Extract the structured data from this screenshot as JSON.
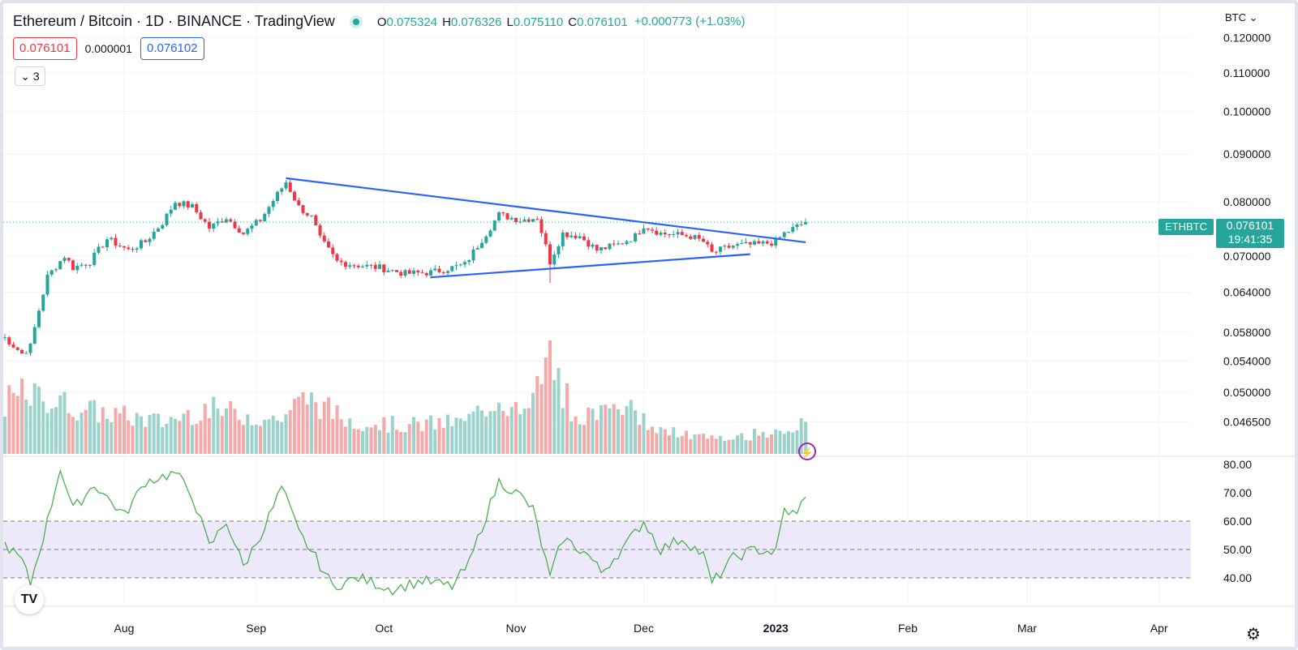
{
  "header": {
    "title": "Ethereum / Bitcoin · 1D · BINANCE · TradingView",
    "ohlc": [
      {
        "k": "O",
        "v": "0.075324"
      },
      {
        "k": "H",
        "v": "0.076326"
      },
      {
        "k": "L",
        "v": "0.075110"
      },
      {
        "k": "C",
        "v": "0.076101"
      }
    ],
    "change": "+0.000773 (+1.03%)",
    "sell_price": "0.076101",
    "spread": "0.000001",
    "buy_price": "0.076102",
    "indicators_toggle": "3",
    "currency": "BTC"
  },
  "colors": {
    "up": "#26a69a",
    "down": "#f23645",
    "up_volume": "#9bd3cc",
    "down_volume": "#f6a9a9",
    "trendline": "#2962ff",
    "rsi": "#4caf50",
    "rsi_band": "#eee9fa"
  },
  "symbol_badge": "ETHBTC",
  "last_price": "0.076101",
  "countdown": "19:41:35",
  "icons": {
    "logo": "tradingview-logo-icon",
    "alert": "lightning-icon",
    "settings": "gear-icon"
  },
  "chart_data": {
    "type": "candlestick",
    "price_axis": {
      "scale": "log",
      "ticks": [
        "0.120000",
        "0.110000",
        "0.100000",
        "0.090000",
        "0.080000",
        "0.070000",
        "0.064000",
        "0.058000",
        "0.054000",
        "0.050000",
        "0.046500"
      ]
    },
    "rsi_axis": {
      "ticks": [
        "80.00",
        "70.00",
        "60.00",
        "50.00",
        "40.00"
      ],
      "band": [
        40,
        60
      ]
    },
    "time_axis": {
      "labels": [
        "Aug",
        "Sep",
        "Oct",
        "Nov",
        "Dec",
        "2023",
        "Feb",
        "Mar",
        "Apr"
      ]
    },
    "price_anchors": [
      [
        "2022-07-04",
        0.0572
      ],
      [
        "2022-07-08",
        0.055
      ],
      [
        "2022-07-10",
        0.056
      ],
      [
        "2022-07-14",
        0.0665
      ],
      [
        "2022-07-18",
        0.07
      ],
      [
        "2022-07-20",
        0.068
      ],
      [
        "2022-07-24",
        0.069
      ],
      [
        "2022-07-28",
        0.073
      ],
      [
        "2022-08-02",
        0.071
      ],
      [
        "2022-08-06",
        0.0725
      ],
      [
        "2022-08-10",
        0.076
      ],
      [
        "2022-08-13",
        0.08
      ],
      [
        "2022-08-17",
        0.079
      ],
      [
        "2022-08-21",
        0.075
      ],
      [
        "2022-08-25",
        0.077
      ],
      [
        "2022-08-29",
        0.074
      ],
      [
        "2022-09-02",
        0.0765
      ],
      [
        "2022-09-06",
        0.0815
      ],
      [
        "2022-09-08",
        0.084
      ],
      [
        "2022-09-11",
        0.079
      ],
      [
        "2022-09-14",
        0.077
      ],
      [
        "2022-09-16",
        0.073
      ],
      [
        "2022-09-20",
        0.069
      ],
      [
        "2022-09-24",
        0.0685
      ],
      [
        "2022-09-30",
        0.068
      ],
      [
        "2022-10-06",
        0.067
      ],
      [
        "2022-10-12",
        0.0672
      ],
      [
        "2022-10-20",
        0.0685
      ],
      [
        "2022-10-25",
        0.074
      ],
      [
        "2022-10-28",
        0.0775
      ],
      [
        "2022-11-02",
        0.0765
      ],
      [
        "2022-11-06",
        0.077
      ],
      [
        "2022-11-09",
        0.069
      ],
      [
        "2022-11-12",
        0.074
      ],
      [
        "2022-11-16",
        0.0735
      ],
      [
        "2022-11-20",
        0.071
      ],
      [
        "2022-11-25",
        0.072
      ],
      [
        "2022-11-29",
        0.0735
      ],
      [
        "2022-12-01",
        0.0755
      ],
      [
        "2022-12-05",
        0.074
      ],
      [
        "2022-12-12",
        0.0735
      ],
      [
        "2022-12-15",
        0.0725
      ],
      [
        "2022-12-17",
        0.0705
      ],
      [
        "2022-12-22",
        0.0718
      ],
      [
        "2022-12-28",
        0.072
      ],
      [
        "2023-01-01",
        0.0725
      ],
      [
        "2023-01-03",
        0.074
      ],
      [
        "2023-01-08",
        0.0761
      ]
    ],
    "spike_lows": [
      [
        "2022-11-09",
        0.0655
      ]
    ],
    "volume_anchors": [
      [
        "2022-07-04",
        0.45
      ],
      [
        "2022-07-08",
        0.52
      ],
      [
        "2022-07-14",
        0.48
      ],
      [
        "2022-07-24",
        0.38
      ],
      [
        "2022-08-10",
        0.28
      ],
      [
        "2022-08-20",
        0.4
      ],
      [
        "2022-09-06",
        0.3
      ],
      [
        "2022-09-13",
        0.5
      ],
      [
        "2022-09-22",
        0.3
      ],
      [
        "2022-10-05",
        0.25
      ],
      [
        "2022-10-20",
        0.28
      ],
      [
        "2022-10-28",
        0.5
      ],
      [
        "2022-11-03",
        0.32
      ],
      [
        "2022-11-09",
        0.85
      ],
      [
        "2022-11-15",
        0.3
      ],
      [
        "2022-11-25",
        0.45
      ],
      [
        "2022-12-05",
        0.2
      ],
      [
        "2022-12-20",
        0.12
      ],
      [
        "2023-01-02",
        0.22
      ],
      [
        "2023-01-08",
        0.25
      ]
    ],
    "volume_spikes": [
      [
        "2022-11-09",
        1.0
      ],
      [
        "2022-11-08",
        0.85
      ],
      [
        "2022-11-10",
        0.65
      ]
    ],
    "rsi_anchors": [
      [
        "2022-07-04",
        52
      ],
      [
        "2022-07-08",
        46
      ],
      [
        "2022-07-10",
        38
      ],
      [
        "2022-07-14",
        60
      ],
      [
        "2022-07-17",
        79
      ],
      [
        "2022-07-20",
        64
      ],
      [
        "2022-07-25",
        73
      ],
      [
        "2022-08-01",
        62
      ],
      [
        "2022-08-06",
        74
      ],
      [
        "2022-08-13",
        77
      ],
      [
        "2022-08-17",
        69
      ],
      [
        "2022-08-21",
        51
      ],
      [
        "2022-08-25",
        60
      ],
      [
        "2022-08-29",
        44
      ],
      [
        "2022-09-03",
        58
      ],
      [
        "2022-09-07",
        72
      ],
      [
        "2022-09-11",
        56
      ],
      [
        "2022-09-15",
        47
      ],
      [
        "2022-09-19",
        37
      ],
      [
        "2022-09-25",
        40
      ],
      [
        "2022-10-03",
        36
      ],
      [
        "2022-10-10",
        39
      ],
      [
        "2022-10-17",
        37
      ],
      [
        "2022-10-21",
        45
      ],
      [
        "2022-10-24",
        58
      ],
      [
        "2022-10-28",
        74
      ],
      [
        "2022-11-02",
        69
      ],
      [
        "2022-11-05",
        64
      ],
      [
        "2022-11-09",
        40
      ],
      [
        "2022-11-12",
        54
      ],
      [
        "2022-11-18",
        48
      ],
      [
        "2022-11-21",
        42
      ],
      [
        "2022-11-27",
        52
      ],
      [
        "2022-12-01",
        60
      ],
      [
        "2022-12-05",
        50
      ],
      [
        "2022-12-10",
        54
      ],
      [
        "2022-12-15",
        48
      ],
      [
        "2022-12-17",
        38
      ],
      [
        "2022-12-22",
        47
      ],
      [
        "2022-12-27",
        50
      ],
      [
        "2023-01-01",
        49
      ],
      [
        "2023-01-03",
        64
      ],
      [
        "2023-01-06",
        62
      ],
      [
        "2023-01-08",
        70
      ]
    ],
    "trendlines": [
      {
        "name": "upper",
        "from": [
          "2022-09-08",
          0.0848
        ],
        "to": [
          "2023-01-08",
          0.0724
        ]
      },
      {
        "name": "lower",
        "from": [
          "2022-10-12",
          0.0664
        ],
        "to": [
          "2022-12-26",
          0.0703
        ]
      }
    ],
    "grid": true
  }
}
